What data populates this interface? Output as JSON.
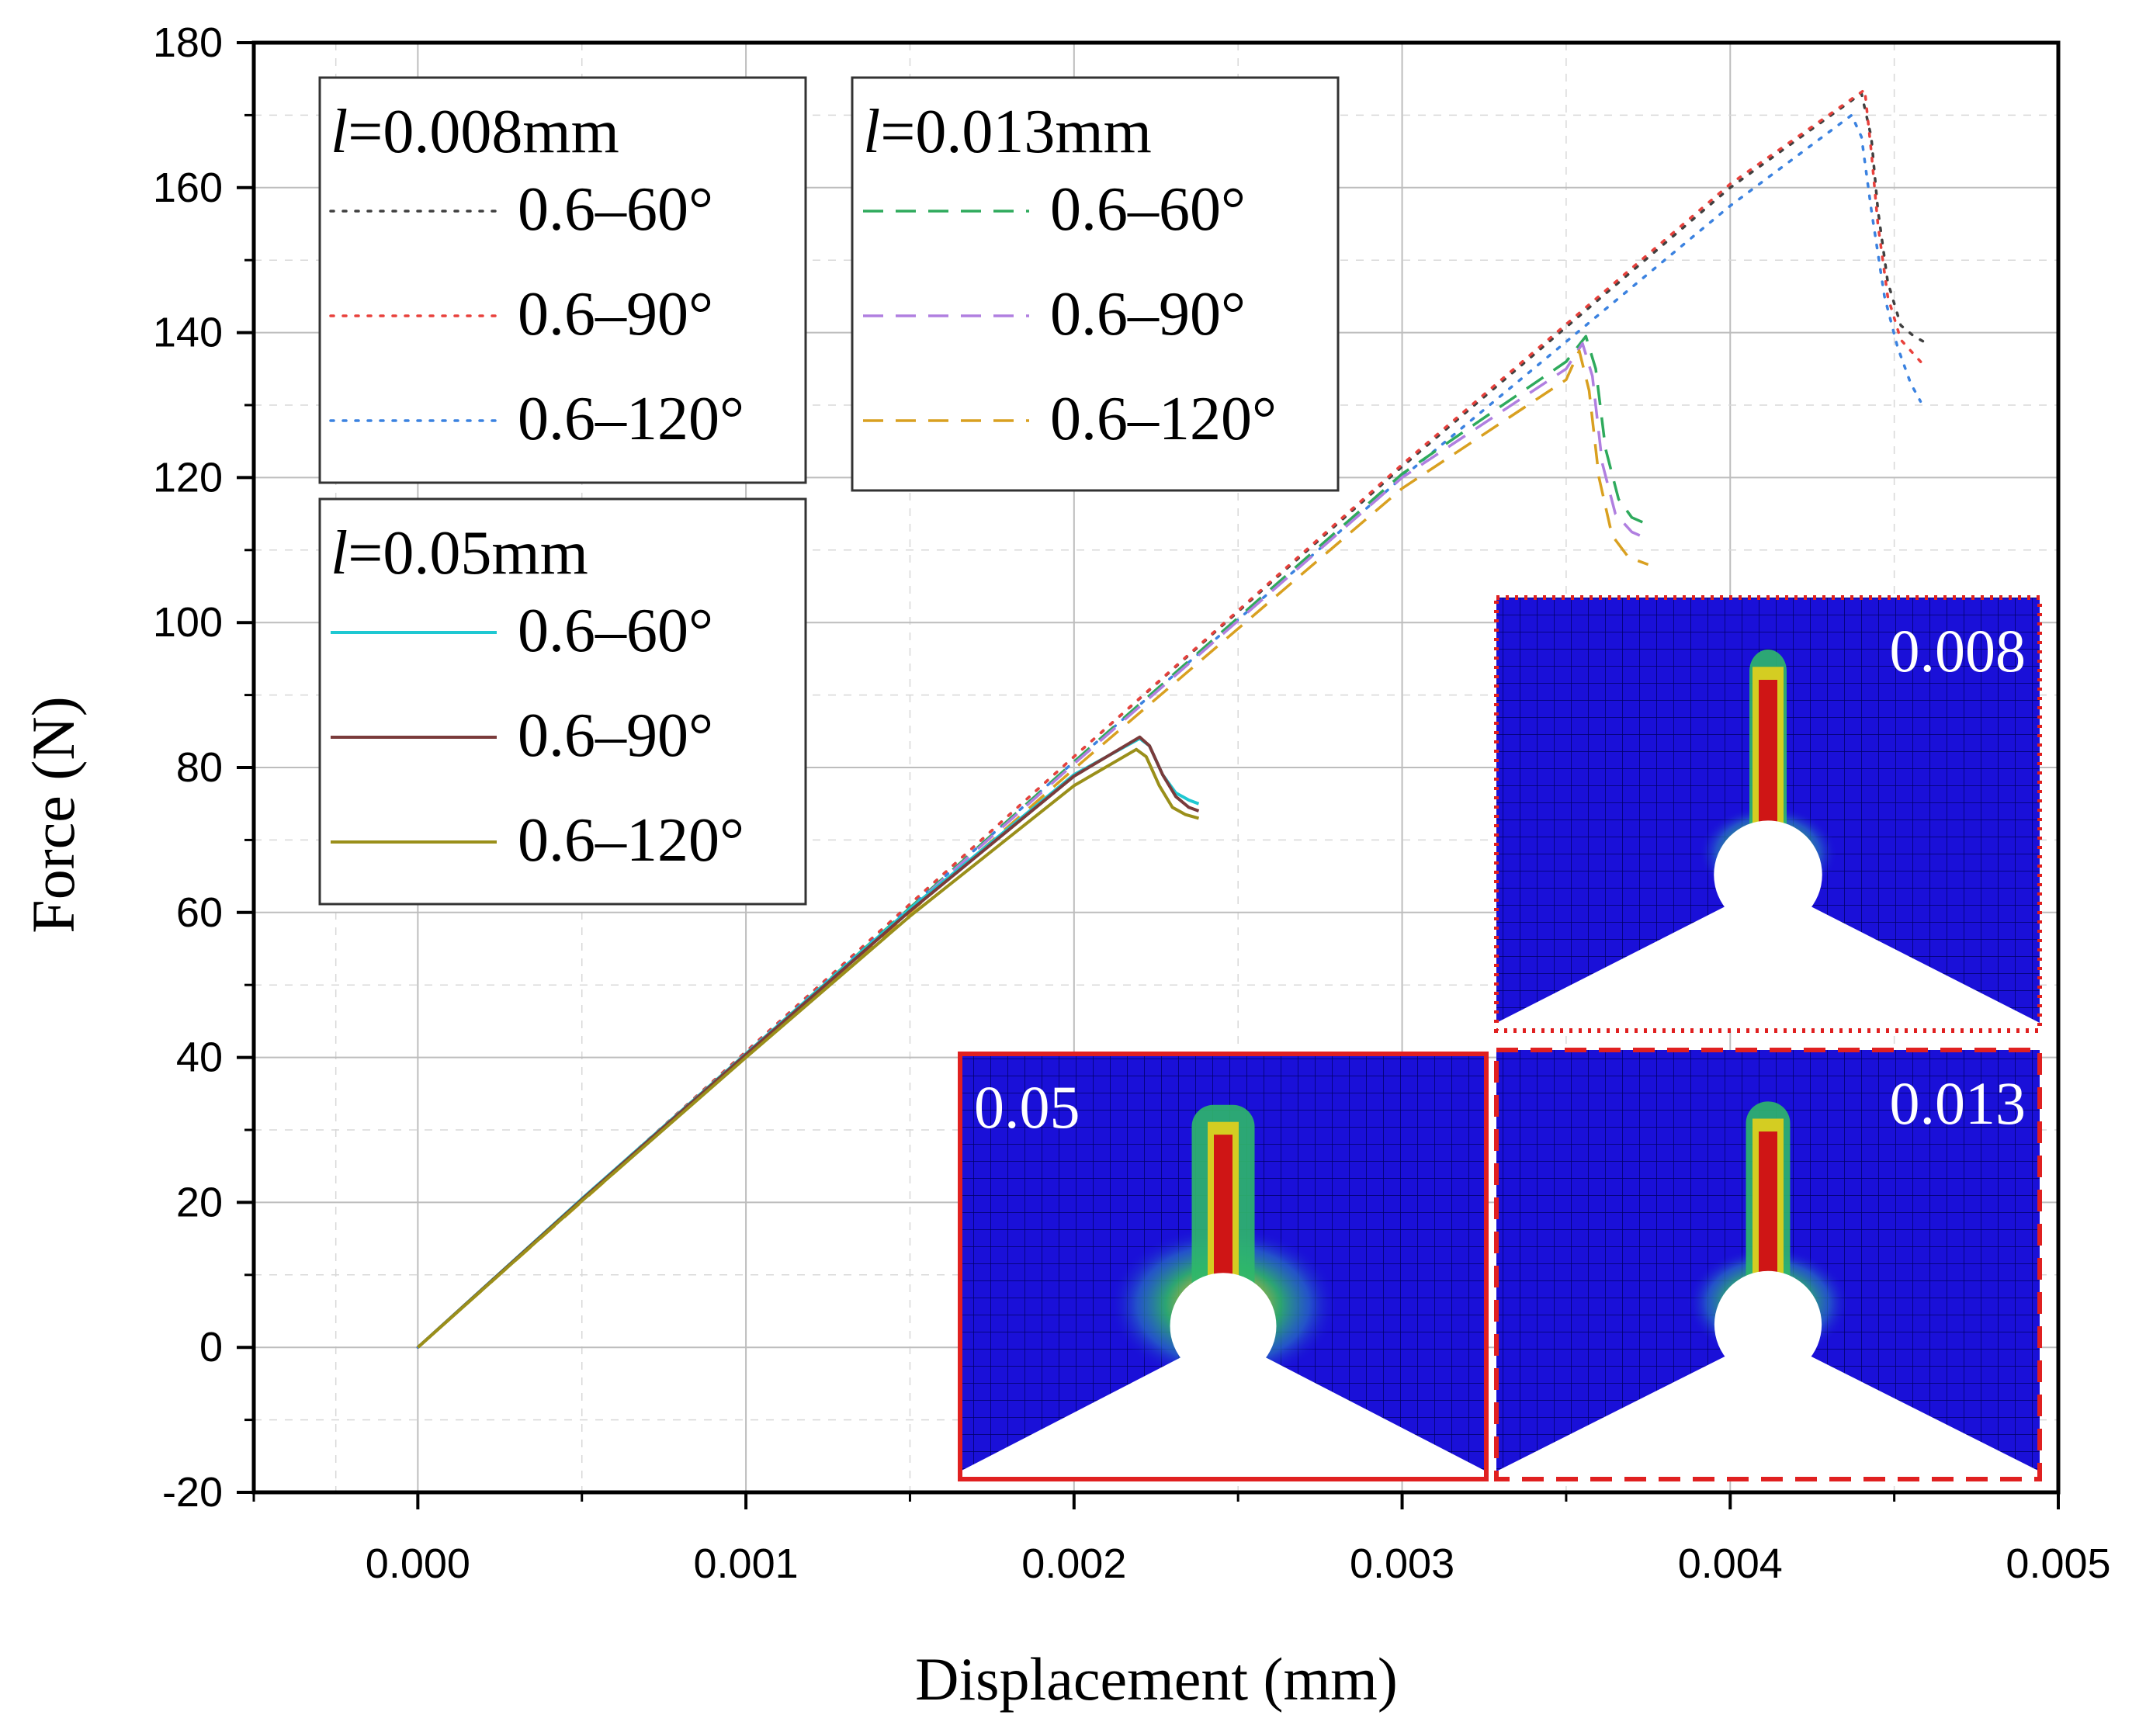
{
  "chart_data": {
    "type": "line",
    "title": "",
    "xlabel": "Displacement (mm)",
    "ylabel": "Force (N)",
    "xlim": [
      -0.0005,
      0.005
    ],
    "ylim": [
      -20,
      180
    ],
    "xticks": [
      0.0,
      0.001,
      0.002,
      0.003,
      0.004,
      0.005
    ],
    "xtick_labels": [
      "0.000",
      "0.001",
      "0.002",
      "0.003",
      "0.004",
      "0.005"
    ],
    "yticks": [
      -20,
      0,
      20,
      40,
      60,
      80,
      100,
      120,
      140,
      160,
      180
    ],
    "ytick_labels": [
      "-20",
      "0",
      "20",
      "40",
      "60",
      "80",
      "100",
      "120",
      "140",
      "160",
      "180"
    ],
    "grid": true,
    "legend_groups": [
      {
        "title_italic": "l",
        "title_rest": "=0.008mm",
        "position": "top-left",
        "series": [
          {
            "name": "0.6–60°",
            "color": "#404040",
            "style": "dotted",
            "x": [
              0,
              0.001,
              0.002,
              0.003,
              0.004,
              0.0044,
              0.00443,
              0.00445,
              0.00448,
              0.00452,
              0.00456,
              0.0046
            ],
            "y": [
              0,
              40.8,
              81.5,
              121.5,
              160,
              173,
              167,
              157,
              147,
              141,
              139.5,
              138.5
            ]
          },
          {
            "name": "0.6–90°",
            "color": "#e8413c",
            "style": "dotted",
            "x": [
              0,
              0.001,
              0.002,
              0.003,
              0.004,
              0.00441,
              0.00443,
              0.00445,
              0.00448,
              0.00452,
              0.00456,
              0.00459
            ],
            "y": [
              0,
              40.8,
              81.5,
              121.8,
              160.5,
              173.5,
              165,
              155,
              145,
              139,
              137,
              135.5
            ]
          },
          {
            "name": "0.6–120°",
            "color": "#3b82e0",
            "style": "dotted",
            "x": [
              0,
              0.001,
              0.002,
              0.003,
              0.004,
              0.00437,
              0.0044,
              0.00443,
              0.00447,
              0.00451,
              0.00455,
              0.00458
            ],
            "y": [
              0,
              40.6,
              80.8,
              120,
              157.5,
              170,
              167,
              157,
              145,
              138,
              133,
              130.5
            ]
          }
        ]
      },
      {
        "title_italic": "l",
        "title_rest": "=0.013mm",
        "position": "top-center",
        "series": [
          {
            "name": "0.6–60°",
            "color": "#2eaa5c",
            "style": "dashed",
            "x": [
              0,
              0.001,
              0.002,
              0.003,
              0.0035,
              0.00356,
              0.00359,
              0.00362,
              0.00366,
              0.0037,
              0.00375
            ],
            "y": [
              0,
              40.5,
              80.8,
              120.5,
              136,
              139.5,
              135,
              124,
              117,
              114.5,
              113.5
            ]
          },
          {
            "name": "0.6–90°",
            "color": "#b07fe0",
            "style": "dashed",
            "x": [
              0,
              0.001,
              0.002,
              0.003,
              0.0035,
              0.00355,
              0.00358,
              0.00361,
              0.00365,
              0.0037,
              0.00375
            ],
            "y": [
              0,
              40.5,
              80.5,
              120,
              135,
              138.5,
              134,
              122,
              115,
              112.5,
              111.5
            ]
          },
          {
            "name": "0.6–120°",
            "color": "#d9a020",
            "style": "dashed",
            "x": [
              0,
              0.001,
              0.002,
              0.003,
              0.0035,
              0.00354,
              0.00357,
              0.0036,
              0.00364,
              0.00369,
              0.00375
            ],
            "y": [
              0,
              40.2,
              79.8,
              118.5,
              133.5,
              137.5,
              132,
              120,
              112,
              109,
              108
            ]
          }
        ]
      },
      {
        "title_italic": "l",
        "title_rest": "=0.05mm",
        "position": "middle-left",
        "series": [
          {
            "name": "0.6–60°",
            "color": "#1ec8d2",
            "style": "solid",
            "x": [
              0,
              0.0005,
              0.001,
              0.0015,
              0.002,
              0.0022,
              0.00223,
              0.00227,
              0.00231,
              0.00235,
              0.00238
            ],
            "y": [
              0,
              20.5,
              40.5,
              60.5,
              79,
              84,
              83,
              79,
              76.5,
              75.5,
              75
            ]
          },
          {
            "name": "0.6–90°",
            "color": "#7a3b3b",
            "style": "solid",
            "x": [
              0,
              0.0005,
              0.001,
              0.0015,
              0.002,
              0.0022,
              0.00223,
              0.00227,
              0.00231,
              0.00235,
              0.00238
            ],
            "y": [
              0,
              20.4,
              40.4,
              60.2,
              78.8,
              84.2,
              83,
              79,
              76,
              74.5,
              74
            ]
          },
          {
            "name": "0.6–120°",
            "color": "#9a8f1a",
            "style": "solid",
            "x": [
              0,
              0.0005,
              0.001,
              0.0015,
              0.002,
              0.00219,
              0.00222,
              0.00226,
              0.0023,
              0.00234,
              0.00238
            ],
            "y": [
              0,
              20.2,
              40,
              59.5,
              77.5,
              82.5,
              81.5,
              77.5,
              74.5,
              73.5,
              73
            ]
          }
        ]
      }
    ],
    "insets": [
      {
        "label": "0.05",
        "border_color": "#e02020",
        "border_style": "solid"
      },
      {
        "label": "0.008",
        "border_color": "#e02020",
        "border_style": "dotted"
      },
      {
        "label": "0.013",
        "border_color": "#e02020",
        "border_style": "dashed"
      }
    ]
  }
}
